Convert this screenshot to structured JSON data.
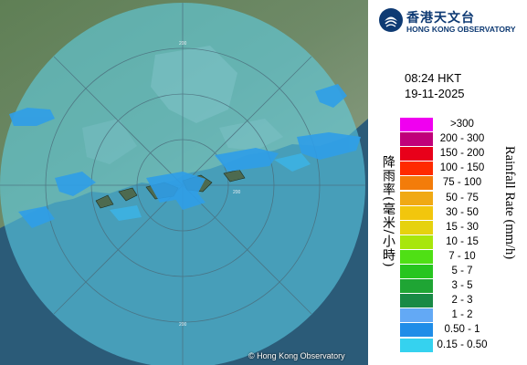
{
  "header": {
    "logo_cn": "香港天文台",
    "logo_en": "HONG KONG OBSERVATORY"
  },
  "timestamp": {
    "time": "08:24 HKT",
    "date": "19-11-2025"
  },
  "legend": {
    "title_cn": "降雨率(毫米/小時)",
    "title_en": "Rainfall Rate (mm/h)",
    "items": [
      {
        "label": ">300",
        "color": "#f000f0"
      },
      {
        "label": "200 - 300",
        "color": "#c0007a"
      },
      {
        "label": "150 - 200",
        "color": "#e8001a"
      },
      {
        "label": "100 - 150",
        "color": "#ff2a00"
      },
      {
        "label": "75 - 100",
        "color": "#f37c0a"
      },
      {
        "label": "50 - 75",
        "color": "#f0a914"
      },
      {
        "label": "30 - 50",
        "color": "#f2c60d"
      },
      {
        "label": "15 - 30",
        "color": "#e6d20e"
      },
      {
        "label": "10 - 15",
        "color": "#a8e60c"
      },
      {
        "label": "7 - 10",
        "color": "#4fe015"
      },
      {
        "label": "5 - 7",
        "color": "#27c51f"
      },
      {
        "label": "3 - 5",
        "color": "#1fa534"
      },
      {
        "label": "2 - 3",
        "color": "#198a45"
      },
      {
        "label": "1 - 2",
        "color": "#63a9f5"
      },
      {
        "label": "0.50 - 1",
        "color": "#1f8de8"
      },
      {
        "label": "0.15 - 0.50",
        "color": "#35d2ef"
      }
    ]
  },
  "map": {
    "range_labels": [
      "200",
      "200",
      "200"
    ],
    "copyright": "© Hong Kong Observatory"
  }
}
